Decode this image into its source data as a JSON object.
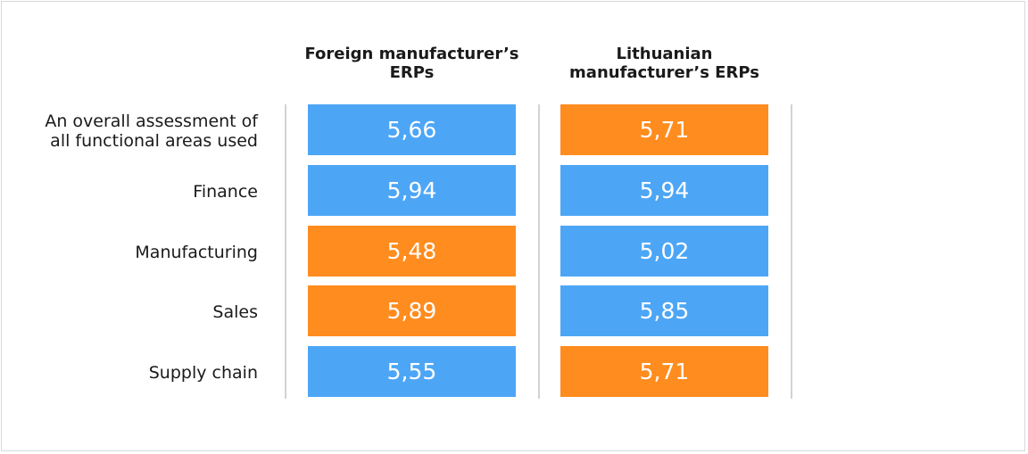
{
  "chart_data": {
    "type": "table",
    "columns": [
      "Foreign manufacturer’s ERPs",
      "Lithuanian manufacturer’s ERPs"
    ],
    "rows": [
      {
        "label": "An overall assessment of all functional areas used",
        "values": [
          "5,66",
          "5,71"
        ],
        "highlight": [
          false,
          true
        ]
      },
      {
        "label": "Finance",
        "values": [
          "5,94",
          "5,94"
        ],
        "highlight": [
          false,
          false
        ]
      },
      {
        "label": "Manufacturing",
        "values": [
          "5,48",
          "5,02"
        ],
        "highlight": [
          true,
          false
        ]
      },
      {
        "label": "Sales",
        "values": [
          "5,89",
          "5,85"
        ],
        "highlight": [
          true,
          false
        ]
      },
      {
        "label": "Supply chain",
        "values": [
          "5,55",
          "5,71"
        ],
        "highlight": [
          false,
          true
        ]
      }
    ],
    "colors": {
      "default": "#4da6f5",
      "highlight": "#ff8c1f"
    }
  }
}
